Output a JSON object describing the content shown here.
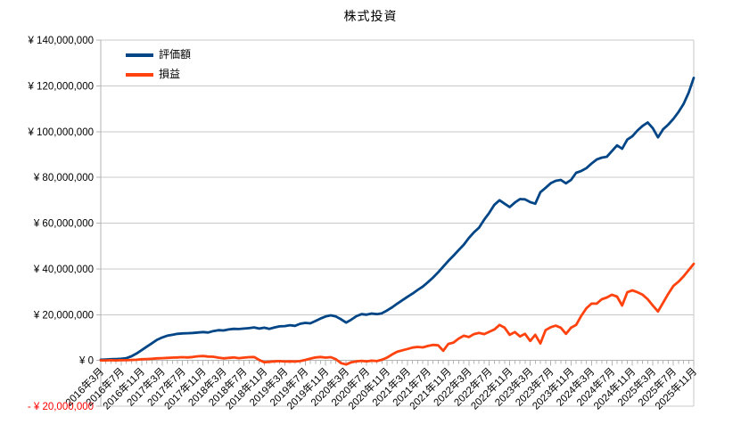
{
  "title": "株式投資",
  "chart_data": {
    "type": "line",
    "title": "株式投資",
    "unit": "JPY (values stored in millions of yen)",
    "x_start": "2016-03",
    "x_interval": "monthly",
    "x_tick_every": 4,
    "x_tick_labels": [
      "2016年3月",
      "2016年7月",
      "2016年11月",
      "2017年3月",
      "2017年7月",
      "2017年11月",
      "2018年3月",
      "2018年7月",
      "2018年11月",
      "2019年3月",
      "2019年7月",
      "2019年11月",
      "2020年3月",
      "2020年7月",
      "2020年11月",
      "2021年3月",
      "2021年7月",
      "2021年11月",
      "2022年3月",
      "2022年7月",
      "2022年11月",
      "2023年3月",
      "2023年7月",
      "2023年11月",
      "2024年3月",
      "2024年7月",
      "2024年11月",
      "2025年3月",
      "2025年7月",
      "2025年11月"
    ],
    "y_axis": {
      "min": -20,
      "max": 140,
      "step": 20,
      "ticks": [
        {
          "value": 140,
          "label": "¥ 140,000,000",
          "color": "#000000"
        },
        {
          "value": 120,
          "label": "¥ 120,000,000",
          "color": "#000000"
        },
        {
          "value": 100,
          "label": "¥ 100,000,000",
          "color": "#000000"
        },
        {
          "value": 80,
          "label": "¥ 80,000,000",
          "color": "#000000"
        },
        {
          "value": 60,
          "label": "¥ 60,000,000",
          "color": "#000000"
        },
        {
          "value": 40,
          "label": "¥ 40,000,000",
          "color": "#000000"
        },
        {
          "value": 20,
          "label": "¥ 20,000,000",
          "color": "#000000"
        },
        {
          "value": 0,
          "label": "¥ 0",
          "color": "#000000"
        },
        {
          "value": -20,
          "label": "- ¥ 20,000,000",
          "color": "#ff0000"
        }
      ]
    },
    "grid": "horizontal",
    "legend_position": "top-left-inside",
    "series": [
      {
        "name": "評価額",
        "color": "#004586",
        "values": [
          0.3,
          0.4,
          0.5,
          0.6,
          0.7,
          1.0,
          1.8,
          3.0,
          4.5,
          6.0,
          7.5,
          9.0,
          10.0,
          10.8,
          11.2,
          11.6,
          11.8,
          11.9,
          12.0,
          12.2,
          12.4,
          12.2,
          12.8,
          13.2,
          13.1,
          13.5,
          13.8,
          13.7,
          13.9,
          14.1,
          14.4,
          13.9,
          14.3,
          13.8,
          14.4,
          14.9,
          15.0,
          15.4,
          15.1,
          16.0,
          16.4,
          16.2,
          17.2,
          18.3,
          19.2,
          19.7,
          19.2,
          18.0,
          16.5,
          17.8,
          19.3,
          20.2,
          20.0,
          20.5,
          20.2,
          20.6,
          21.8,
          23.2,
          24.8,
          26.3,
          27.8,
          29.2,
          30.8,
          32.3,
          34.2,
          36.2,
          38.5,
          41.0,
          43.5,
          45.8,
          48.2,
          50.5,
          53.5,
          56.0,
          58.0,
          61.5,
          64.5,
          68.0,
          70.0,
          68.5,
          67.0,
          69.0,
          70.5,
          70.4,
          69.2,
          68.5,
          73.5,
          75.4,
          77.4,
          78.5,
          78.9,
          77.4,
          78.9,
          82.0,
          82.8,
          84.0,
          86.0,
          87.8,
          88.6,
          89.0,
          91.5,
          94.0,
          92.5,
          96.5,
          98.0,
          100.5,
          102.5,
          104.0,
          101.5,
          97.5,
          101.0,
          103.0,
          105.5,
          108.5,
          112.0,
          117.0,
          123.5
        ]
      },
      {
        "name": "損益",
        "color": "#ff420e",
        "values": [
          0.0,
          0.0,
          0.1,
          0.0,
          0.1,
          0.1,
          0.2,
          0.3,
          0.5,
          0.6,
          0.7,
          0.9,
          1.0,
          1.1,
          1.2,
          1.3,
          1.4,
          1.3,
          1.5,
          1.8,
          1.9,
          1.7,
          1.6,
          1.2,
          0.9,
          1.1,
          1.3,
          1.0,
          1.2,
          1.4,
          1.5,
          0.2,
          -0.8,
          -0.6,
          -0.4,
          -0.3,
          -0.5,
          -0.4,
          -0.5,
          -0.3,
          0.2,
          0.8,
          1.3,
          1.5,
          1.2,
          1.4,
          0.5,
          -1.2,
          -1.8,
          -0.8,
          -0.4,
          -0.2,
          -0.4,
          -0.1,
          -0.3,
          0.3,
          1.2,
          2.6,
          3.8,
          4.4,
          5.0,
          5.6,
          5.9,
          5.7,
          6.3,
          6.8,
          6.6,
          4.2,
          7.2,
          7.8,
          9.5,
          10.8,
          10.2,
          11.5,
          12.0,
          11.5,
          12.5,
          13.5,
          15.5,
          14.3,
          11.2,
          12.4,
          10.5,
          11.6,
          8.5,
          11.2,
          7.4,
          13.2,
          14.5,
          15.2,
          14.3,
          11.6,
          14.3,
          15.5,
          19.5,
          22.8,
          24.8,
          24.8,
          26.7,
          27.5,
          28.7,
          27.9,
          24.0,
          29.8,
          30.6,
          29.8,
          28.7,
          26.7,
          24.0,
          21.4,
          25.2,
          29.0,
          32.5,
          34.4,
          36.7,
          39.5,
          42.2
        ]
      }
    ],
    "colors": {
      "gridline": "#c9c9c9",
      "axis": "#b3b3b3",
      "negative_tick_label": "#ff0000"
    }
  }
}
